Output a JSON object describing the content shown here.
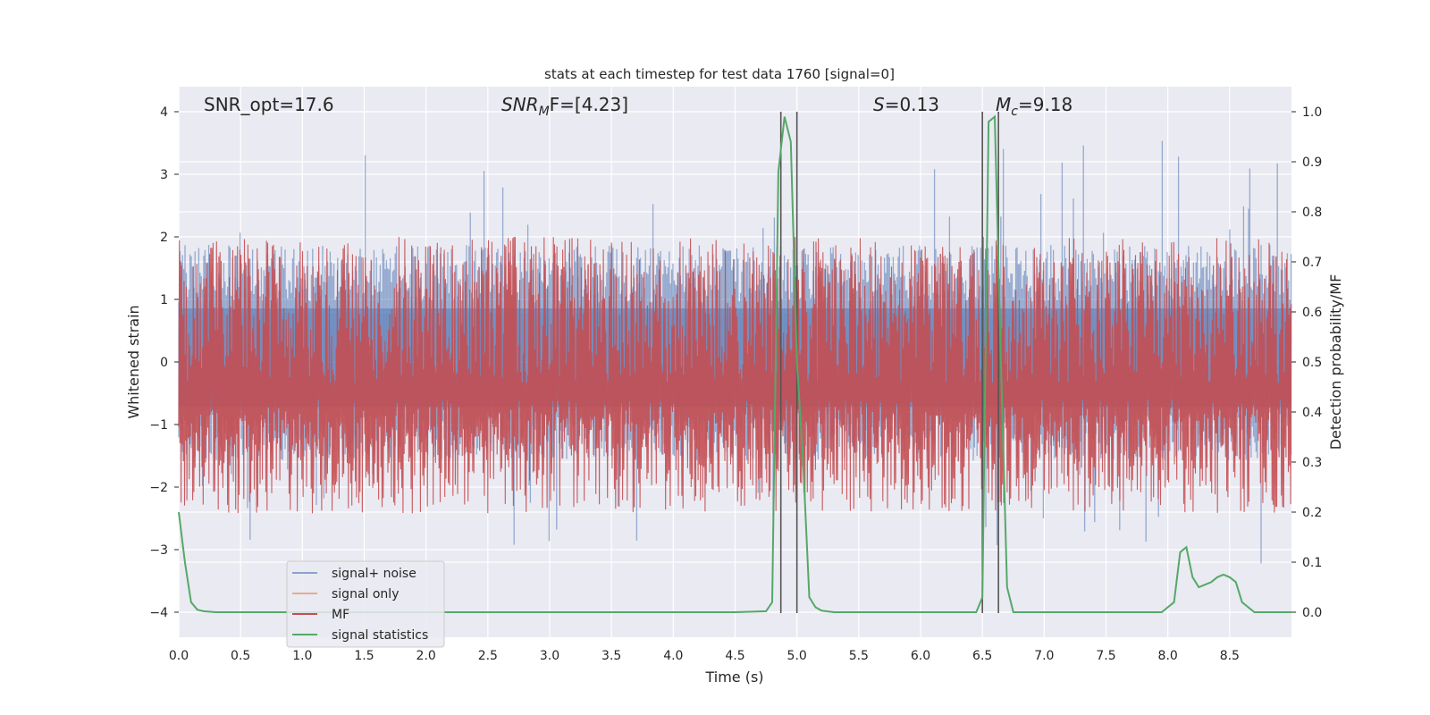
{
  "chart_data": {
    "type": "line",
    "title": "stats at each timestep for test data 1760 [signal=0]",
    "xlabel": "Time (s)",
    "ylabel_left": "Whitened strain",
    "ylabel_right": "Detection probability/MF",
    "xlim": [
      0,
      9.0
    ],
    "ylim_left": [
      -4.4,
      4.4
    ],
    "ylim_right": [
      -0.05,
      1.05
    ],
    "x_ticks": [
      "0.0",
      "0.5",
      "1.0",
      "1.5",
      "2.0",
      "2.5",
      "3.0",
      "3.5",
      "4.0",
      "4.5",
      "5.0",
      "5.5",
      "6.0",
      "6.5",
      "7.0",
      "7.5",
      "8.0",
      "8.5"
    ],
    "y_ticks_left": [
      "4",
      "3",
      "2",
      "1",
      "0",
      "−1",
      "−2",
      "−3",
      "−4"
    ],
    "y_ticks_right": [
      "1.0",
      "0.9",
      "0.8",
      "0.7",
      "0.6",
      "0.5",
      "0.4",
      "0.3",
      "0.2",
      "0.1",
      "0.0"
    ],
    "grid": true,
    "annotations": {
      "snr_opt": "SNR_opt=17.6",
      "snr_mf_main": "SNR",
      "snr_mf_sub": "M",
      "snr_mf_rest": "F=[4.23]",
      "s_italic": "S",
      "s_rest": "=0.13",
      "mc_main": "M",
      "mc_sub": "c",
      "mc_rest": "=9.18"
    },
    "legend_position": "lower-left",
    "legend": [
      "signal+ noise",
      "signal only",
      "MF",
      "signal statistics"
    ],
    "colors": {
      "signal_noise": "#4c72b0",
      "signal_only": "#dd8452",
      "mf": "#c44e52",
      "signal_statistics": "#55a868",
      "vlines": "#555555",
      "plot_bg": "#eaeaf2"
    },
    "vertical_lines": [
      4.87,
      5.0,
      6.5,
      6.63
    ],
    "signal_noise": {
      "envelope_upper": 1.9,
      "envelope_lower": -1.6,
      "peak_max": 3.7,
      "peak_min": -3.3
    },
    "mf": {
      "band": [
        0.1,
        0.75
      ]
    },
    "signal_statistics": {
      "x": [
        0.0,
        0.05,
        0.1,
        0.15,
        0.2,
        0.3,
        1.0,
        2.0,
        3.0,
        4.0,
        4.5,
        4.75,
        4.8,
        4.85,
        4.9,
        4.95,
        5.0,
        5.05,
        5.1,
        5.15,
        5.2,
        5.3,
        5.5,
        6.0,
        6.45,
        6.5,
        6.55,
        6.6,
        6.65,
        6.7,
        6.75,
        7.0,
        7.5,
        7.95,
        8.0,
        8.05,
        8.1,
        8.15,
        8.2,
        8.25,
        8.3,
        8.35,
        8.4,
        8.45,
        8.5,
        8.55,
        8.6,
        8.65,
        8.7,
        8.8,
        9.0
      ],
      "y": [
        0.2,
        0.1,
        0.02,
        0.005,
        0.002,
        0.0,
        0.0,
        0.0,
        0.0,
        0.0,
        0.0,
        0.002,
        0.02,
        0.88,
        0.99,
        0.94,
        0.5,
        0.3,
        0.03,
        0.01,
        0.003,
        0.0,
        0.0,
        0.0,
        0.0,
        0.03,
        0.98,
        0.99,
        0.5,
        0.05,
        0.0,
        0.0,
        0.0,
        0.0,
        0.01,
        0.02,
        0.12,
        0.13,
        0.07,
        0.05,
        0.055,
        0.06,
        0.07,
        0.075,
        0.07,
        0.06,
        0.02,
        0.01,
        0.0,
        0.0,
        0.0
      ]
    }
  }
}
